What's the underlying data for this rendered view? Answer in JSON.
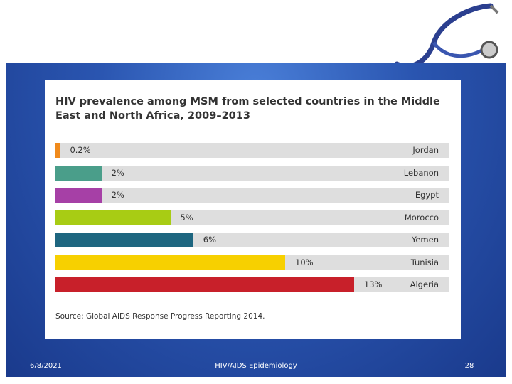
{
  "chart_data": {
    "type": "bar",
    "title": "HIV prevalence among MSM from selected countries in the Middle East and North Africa, 2009–2013",
    "categories": [
      "Jordan",
      "Lebanon",
      "Egypt",
      "Morocco",
      "Yemen",
      "Tunisia",
      "Algeria"
    ],
    "values": [
      0.2,
      2,
      2,
      5,
      6,
      10,
      13
    ],
    "value_labels": [
      "0.2%",
      "2%",
      "2%",
      "5%",
      "6%",
      "10%",
      "13%"
    ],
    "colors": [
      "#f08a1c",
      "#4a9e8a",
      "#a640a6",
      "#a8cc14",
      "#1e6680",
      "#f7d000",
      "#c8202a"
    ],
    "source": "Source: Global AIDS Response Progress Reporting 2014."
  },
  "footer": {
    "date": "6/8/2021",
    "text": "HIV/AIDS Epidemiology",
    "page": "28"
  }
}
